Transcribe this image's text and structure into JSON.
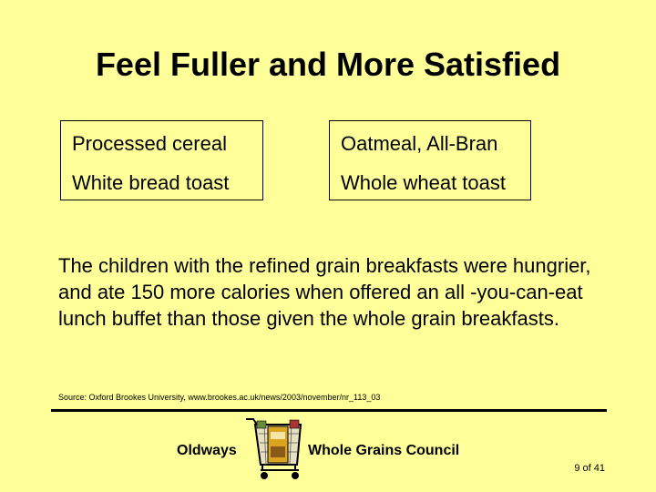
{
  "slide": {
    "title": "Feel Fuller and More Satisfied",
    "comparison": {
      "refined": [
        "Processed cereal",
        "White bread toast"
      ],
      "whole": [
        "Oatmeal, All-Bran",
        "Whole wheat toast"
      ]
    },
    "body": "The children with the refined grain breakfasts were hungrier, and ate 150 more calories when offered an all -you-can-eat lunch buffet than those given the whole grain breakfasts.",
    "source": "Source: Oxford Brookes University, www.brookes.ac.uk/news/2003/november/nr_113_03",
    "footer": {
      "left_org": "Oldways",
      "right_org": "Whole Grains Council",
      "page": "9 of 41",
      "logo_icon": "grocery-cart-logo-icon"
    }
  },
  "colors": {
    "background": "#ffff99",
    "text": "#000000"
  }
}
